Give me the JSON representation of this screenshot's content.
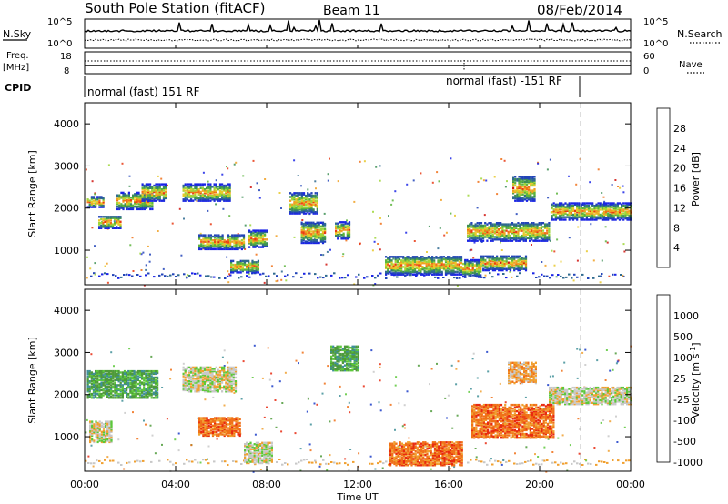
{
  "header": {
    "station": "South Pole Station (fitACF)",
    "beam": "Beam 11",
    "date": "08/Feb/2014"
  },
  "params": {
    "nsky_label": "N.Sky",
    "nsearch_label": "N.Search",
    "freq_label": "Freq.",
    "freq_unit": "[MHz]",
    "nave_label": "Nave",
    "cpid_label": "CPID",
    "noise_ticks": [
      "10^5",
      "10^0"
    ],
    "freq_ticks": [
      "18",
      "8"
    ],
    "nave_ticks": [
      "60",
      "0"
    ],
    "cpid_left": "normal (fast) 151 RF",
    "cpid_right": "normal (fast) -151 RF"
  },
  "x_axis": {
    "label": "Time UT",
    "ticks": [
      "00:00",
      "04:00",
      "08:00",
      "12:00",
      "16:00",
      "20:00",
      "00:00"
    ]
  },
  "chart_data": [
    {
      "type": "heatmap",
      "title": "",
      "xlabel": "Time UT",
      "ylabel": "Slant Range [km]",
      "xlim": [
        0,
        24
      ],
      "ylim": [
        180,
        4500
      ],
      "yticks": [
        "1000",
        "2000",
        "3000",
        "4000"
      ],
      "colorbar": {
        "label": "Power [dB]",
        "ticks": [
          "4",
          "8",
          "12",
          "16",
          "20",
          "24",
          "28"
        ],
        "colors": [
          "#1a24e6",
          "#2244b8",
          "#2f6a8f",
          "#3d8f55",
          "#5cb43c",
          "#9fd63a",
          "#e8c82a",
          "#f0a023",
          "#f07018",
          "#e83a14",
          "#d0140e"
        ]
      },
      "dashed_marker_x": 21.8,
      "features": [
        {
          "t0": 0.1,
          "t1": 0.8,
          "r0": 2050,
          "r1": 2300
        },
        {
          "t0": 0.6,
          "t1": 1.6,
          "r0": 1550,
          "r1": 1850
        },
        {
          "t0": 1.4,
          "t1": 3.0,
          "r0": 2000,
          "r1": 2400
        },
        {
          "t0": 2.5,
          "t1": 3.6,
          "r0": 2200,
          "r1": 2600
        },
        {
          "t0": 4.3,
          "t1": 6.4,
          "r0": 2200,
          "r1": 2600
        },
        {
          "t0": 5.0,
          "t1": 7.0,
          "r0": 1050,
          "r1": 1400
        },
        {
          "t0": 6.4,
          "t1": 7.6,
          "r0": 500,
          "r1": 800
        },
        {
          "t0": 7.2,
          "t1": 8.0,
          "r0": 1100,
          "r1": 1500
        },
        {
          "t0": 9.0,
          "t1": 10.2,
          "r0": 1900,
          "r1": 2400
        },
        {
          "t0": 9.5,
          "t1": 10.6,
          "r0": 1200,
          "r1": 1700
        },
        {
          "t0": 11.0,
          "t1": 11.6,
          "r0": 1300,
          "r1": 1700
        },
        {
          "t0": 13.2,
          "t1": 16.6,
          "r0": 450,
          "r1": 900
        },
        {
          "t0": 16.6,
          "t1": 17.4,
          "r0": 400,
          "r1": 800
        },
        {
          "t0": 16.8,
          "t1": 20.4,
          "r0": 1250,
          "r1": 1700
        },
        {
          "t0": 17.4,
          "t1": 19.4,
          "r0": 550,
          "r1": 900
        },
        {
          "t0": 18.8,
          "t1": 19.8,
          "r0": 2200,
          "r1": 2800
        },
        {
          "t0": 20.5,
          "t1": 24.0,
          "r0": 1750,
          "r1": 2150
        }
      ]
    },
    {
      "type": "heatmap",
      "title": "",
      "xlabel": "Time UT",
      "ylabel": "Slant Range [km]",
      "xlim": [
        0,
        24
      ],
      "ylim": [
        180,
        4500
      ],
      "yticks": [
        "1000",
        "2000",
        "3000",
        "4000"
      ],
      "colorbar": {
        "label": "Velocity [m s^-1]",
        "ticks": [
          "1000",
          "500",
          "100",
          "25",
          "-25",
          "-100",
          "-500",
          "-1000"
        ],
        "colors": [
          "#1a3cc8",
          "#3f8f98",
          "#4e9a3a",
          "#5cc83a",
          "#c8c8c8",
          "#f0a030",
          "#f07018",
          "#e82a10"
        ]
      },
      "dashed_marker_x": 21.8,
      "features": [
        {
          "t0": 0.1,
          "t1": 3.2,
          "r0": 1950,
          "r1": 2600
        },
        {
          "t0": 0.2,
          "t1": 1.2,
          "r0": 900,
          "r1": 1400
        },
        {
          "t0": 4.3,
          "t1": 6.6,
          "r0": 2100,
          "r1": 2700
        },
        {
          "t0": 5.0,
          "t1": 6.8,
          "r0": 1050,
          "r1": 1500
        },
        {
          "t0": 7.0,
          "t1": 8.2,
          "r0": 400,
          "r1": 900
        },
        {
          "t0": 10.8,
          "t1": 12.0,
          "r0": 2600,
          "r1": 3200
        },
        {
          "t0": 13.4,
          "t1": 16.6,
          "r0": 350,
          "r1": 900
        },
        {
          "t0": 17.0,
          "t1": 20.6,
          "r0": 1000,
          "r1": 1800
        },
        {
          "t0": 18.6,
          "t1": 19.8,
          "r0": 2300,
          "r1": 2800
        },
        {
          "t0": 20.4,
          "t1": 24.0,
          "r0": 1800,
          "r1": 2200
        }
      ]
    }
  ]
}
